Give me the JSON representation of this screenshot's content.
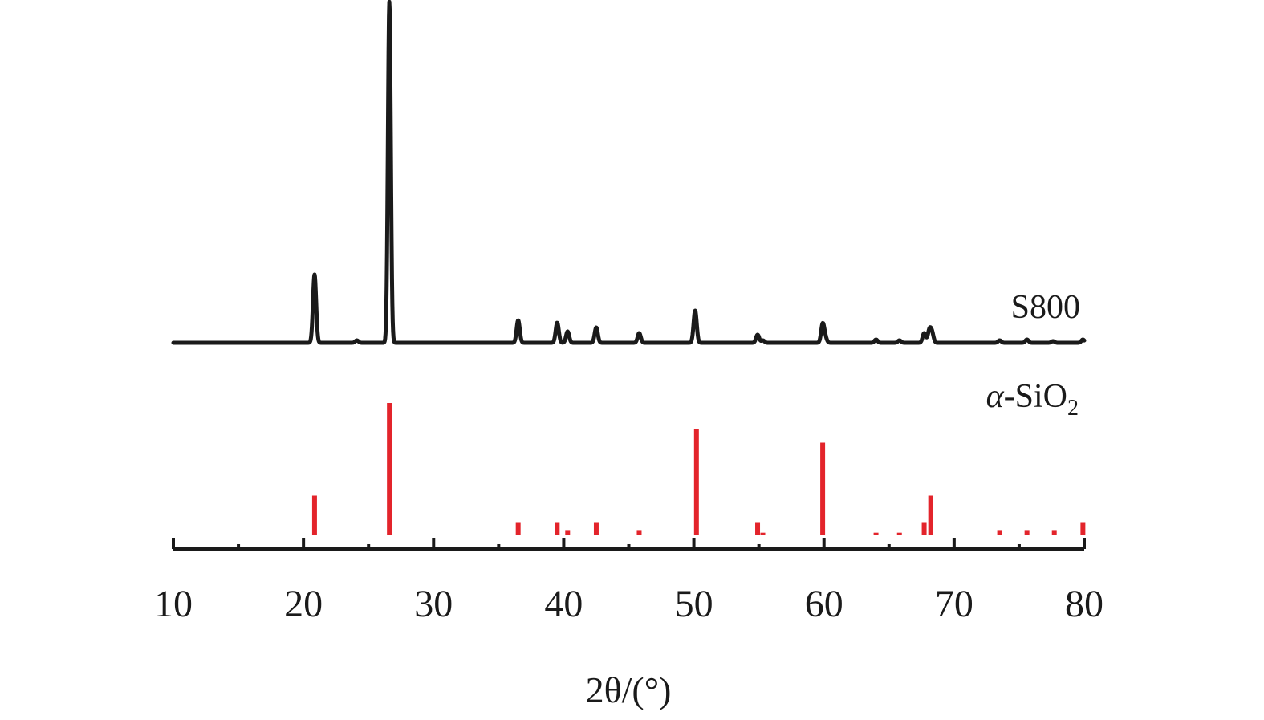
{
  "chart_data": {
    "type": "line",
    "xlabel": "2θ/(°)",
    "xlim": [
      10,
      80
    ],
    "xticks": [
      10,
      20,
      30,
      40,
      50,
      60,
      70,
      80
    ],
    "minor_xticks": [
      15,
      25,
      35,
      45,
      55,
      65,
      75
    ],
    "ylabel": "",
    "grid": false,
    "series": [
      {
        "name": "S800",
        "color": "#1a1a1a",
        "kind": "xrd-pattern",
        "peaks": [
          {
            "x": 20.85,
            "height": 85,
            "width": 0.12
          },
          {
            "x": 24.1,
            "height": 3,
            "width": 0.12
          },
          {
            "x": 26.6,
            "height": 425,
            "width": 0.11
          },
          {
            "x": 36.5,
            "height": 28,
            "width": 0.12
          },
          {
            "x": 39.5,
            "height": 25,
            "width": 0.12
          },
          {
            "x": 40.3,
            "height": 14,
            "width": 0.12
          },
          {
            "x": 42.5,
            "height": 19,
            "width": 0.12
          },
          {
            "x": 45.8,
            "height": 12,
            "width": 0.12
          },
          {
            "x": 50.1,
            "height": 40,
            "width": 0.12
          },
          {
            "x": 54.9,
            "height": 10,
            "width": 0.12
          },
          {
            "x": 55.3,
            "height": 3,
            "width": 0.12
          },
          {
            "x": 59.9,
            "height": 23,
            "width": 0.12
          },
          {
            "x": 60.1,
            "height": 6,
            "width": 0.12
          },
          {
            "x": 64.0,
            "height": 4,
            "width": 0.12
          },
          {
            "x": 65.8,
            "height": 3,
            "width": 0.12
          },
          {
            "x": 67.7,
            "height": 12,
            "width": 0.12
          },
          {
            "x": 68.1,
            "height": 15,
            "width": 0.12
          },
          {
            "x": 68.3,
            "height": 12,
            "width": 0.12
          },
          {
            "x": 73.5,
            "height": 3,
            "width": 0.12
          },
          {
            "x": 75.6,
            "height": 4,
            "width": 0.12
          },
          {
            "x": 77.6,
            "height": 2,
            "width": 0.12
          },
          {
            "x": 79.9,
            "height": 4,
            "width": 0.12
          }
        ]
      },
      {
        "name": "α-SiO₂",
        "name_parts": {
          "symbol": "α",
          "rest": "-SiO",
          "subscript": "2"
        },
        "color": "#e3242b",
        "kind": "reference-sticks",
        "sticks": [
          {
            "x": 20.85,
            "intensity": 30
          },
          {
            "x": 26.6,
            "intensity": 100
          },
          {
            "x": 36.5,
            "intensity": 10
          },
          {
            "x": 39.5,
            "intensity": 10
          },
          {
            "x": 40.3,
            "intensity": 4
          },
          {
            "x": 42.5,
            "intensity": 10
          },
          {
            "x": 45.8,
            "intensity": 4
          },
          {
            "x": 50.2,
            "intensity": 80
          },
          {
            "x": 54.9,
            "intensity": 10
          },
          {
            "x": 55.3,
            "intensity": 2
          },
          {
            "x": 59.9,
            "intensity": 70
          },
          {
            "x": 64.0,
            "intensity": 2
          },
          {
            "x": 65.8,
            "intensity": 2
          },
          {
            "x": 67.7,
            "intensity": 10
          },
          {
            "x": 68.2,
            "intensity": 30
          },
          {
            "x": 73.5,
            "intensity": 4
          },
          {
            "x": 75.6,
            "intensity": 4
          },
          {
            "x": 77.7,
            "intensity": 4
          },
          {
            "x": 79.9,
            "intensity": 10
          }
        ]
      }
    ]
  }
}
